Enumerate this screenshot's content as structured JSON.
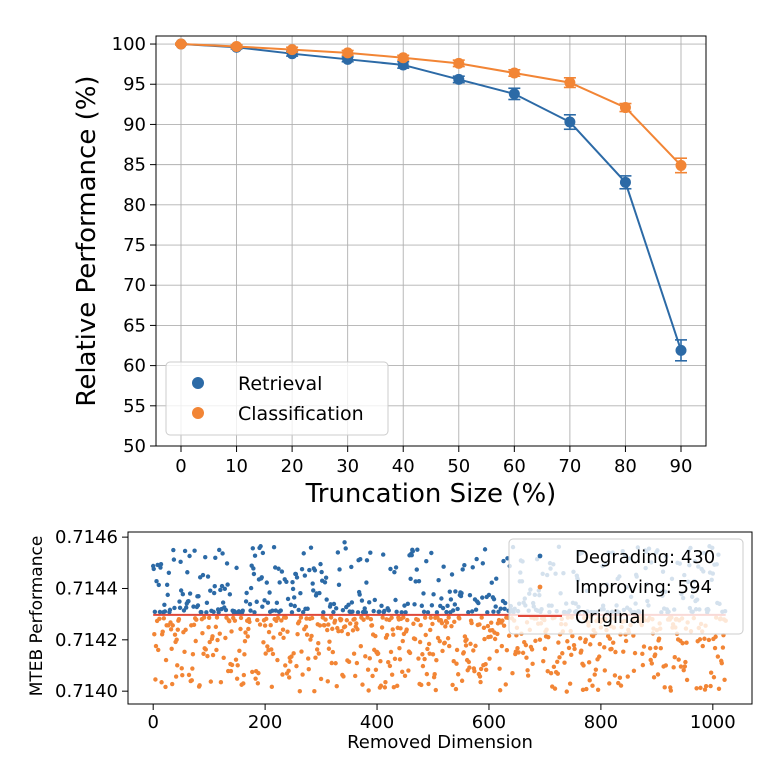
{
  "colors": {
    "retrieval": "#2c6aa6",
    "classification": "#f28535",
    "degrading": "#2c6aa6",
    "improving": "#f28535",
    "original": "#e0483a"
  },
  "chart_data": [
    {
      "type": "line",
      "title": "",
      "xlabel": "Truncation Size (%)",
      "ylabel": "Relative Performance (%)",
      "x": [
        0,
        10,
        20,
        30,
        40,
        50,
        60,
        70,
        80,
        90
      ],
      "xticks": [
        "0",
        "10",
        "20",
        "30",
        "40",
        "50",
        "60",
        "70",
        "80",
        "90"
      ],
      "yticks": [
        "50",
        "55",
        "60",
        "65",
        "70",
        "75",
        "80",
        "85",
        "90",
        "95",
        "100"
      ],
      "xlim": [
        -4.5,
        94.5
      ],
      "ylim": [
        50,
        101
      ],
      "grid": true,
      "legend_position": "lower-left",
      "series": [
        {
          "name": "Retrieval",
          "color_key": "retrieval",
          "values": [
            100.0,
            99.6,
            98.8,
            98.1,
            97.4,
            95.6,
            93.8,
            90.3,
            82.8,
            61.9
          ],
          "errors": [
            0.1,
            0.2,
            0.3,
            0.3,
            0.4,
            0.4,
            0.7,
            0.9,
            0.8,
            1.3
          ]
        },
        {
          "name": "Classification",
          "color_key": "classification",
          "values": [
            100.0,
            99.7,
            99.3,
            98.9,
            98.3,
            97.6,
            96.4,
            95.2,
            92.1,
            84.9
          ],
          "errors": [
            0.1,
            0.2,
            0.3,
            0.3,
            0.3,
            0.4,
            0.4,
            0.6,
            0.5,
            0.9
          ]
        }
      ]
    },
    {
      "type": "scatter",
      "title": "",
      "xlabel": "Removed Dimension",
      "ylabel": "MTEB Performance",
      "xticks": [
        "0",
        "200",
        "400",
        "600",
        "800",
        "1000"
      ],
      "yticks": [
        "0.7140",
        "0.7142",
        "0.7144",
        "0.7146"
      ],
      "xlim": [
        -45,
        1070
      ],
      "ylim": [
        0.71395,
        0.71462
      ],
      "baseline": 0.714297,
      "legend_position": "upper-right",
      "series": [
        {
          "name": "Degrading: 430",
          "color_key": "degrading",
          "count": 430,
          "side": "above"
        },
        {
          "name": "Improving: 594",
          "color_key": "improving",
          "count": 594,
          "side": "below"
        },
        {
          "name": "Original",
          "color_key": "original",
          "kind": "line"
        }
      ]
    }
  ]
}
